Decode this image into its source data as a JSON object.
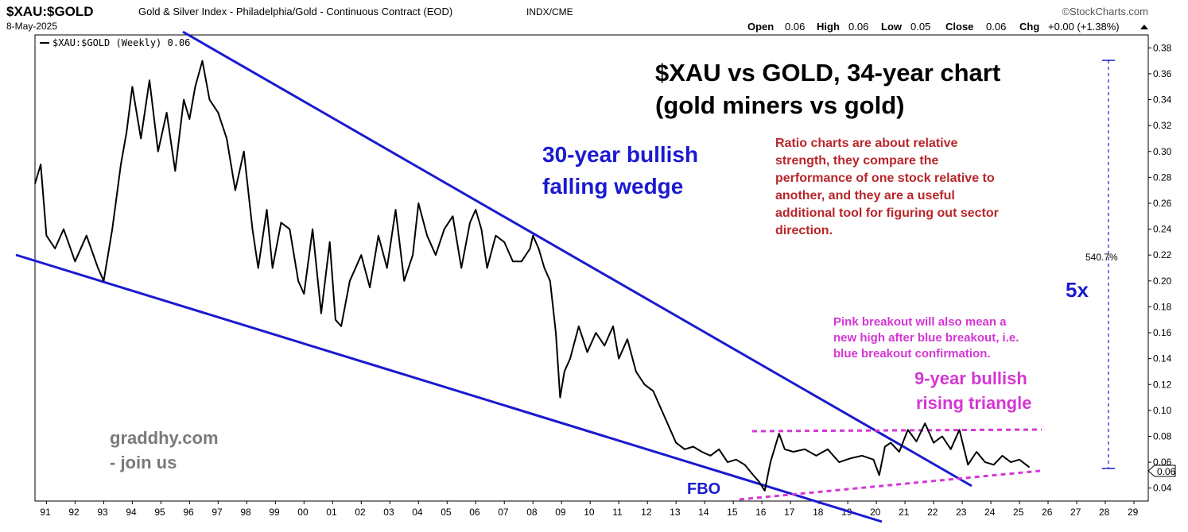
{
  "header": {
    "symbol": "$XAU:$GOLD",
    "description": "Gold & Silver Index - Philadelphia/Gold - Continuous Contract (EOD)",
    "exchange": "INDX/CME",
    "date": "8-May-2025",
    "logo": "©StockCharts.com",
    "ohlc": {
      "open_label": "Open",
      "open": "0.06",
      "high_label": "High",
      "high": "0.06",
      "low_label": "Low",
      "low": "0.05",
      "close_label": "Close",
      "close": "0.06",
      "chg_label": "Chg",
      "chg": "+0.00 (+1.38%)",
      "chg_icon": "up-triangle-icon"
    },
    "legend": "$XAU:$GOLD (Weekly) 0.06"
  },
  "annotations": {
    "title_line1": "$XAU vs GOLD, 34-year chart",
    "title_line2": "(gold miners vs gold)",
    "wedge_line1": "30-year bullish",
    "wedge_line2": "falling wedge",
    "ratio_note": [
      "Ratio charts are about relative",
      "strength, they compare the",
      "performance of one stock relative to",
      "another, and they are a useful",
      "additional tool for figuring out sector",
      "direction."
    ],
    "pink_note": [
      "Pink breakout will also mean a",
      "new high after blue breakout, i.e.",
      "blue breakout confirmation."
    ],
    "triangle_line1": "9-year bullish",
    "triangle_line2": "rising triangle",
    "site_line1": "graddhy.com",
    "site_line2": "- join us",
    "fbo": "FBO",
    "percent": "540.7%",
    "multiple": "5x",
    "last_value": "0.06"
  },
  "colors": {
    "price": "#000000",
    "wedge": "#1a1ad0",
    "triangle": "#d437d4",
    "note_red": "#b8262b",
    "note_grey": "#7a7a7a"
  },
  "chart_data": {
    "type": "line",
    "series_name": "$XAU:$GOLD (Weekly)",
    "x_ticks": [
      "91",
      "92",
      "93",
      "94",
      "95",
      "96",
      "97",
      "98",
      "99",
      "00",
      "01",
      "02",
      "03",
      "04",
      "05",
      "06",
      "07",
      "08",
      "09",
      "10",
      "11",
      "12",
      "13",
      "14",
      "15",
      "16",
      "17",
      "18",
      "19",
      "20",
      "21",
      "22",
      "23",
      "24",
      "25",
      "26",
      "27",
      "28",
      "29"
    ],
    "y_ticks": [
      "0.04",
      "0.06",
      "0.08",
      "0.10",
      "0.12",
      "0.14",
      "0.16",
      "0.18",
      "0.20",
      "0.22",
      "0.24",
      "0.26",
      "0.28",
      "0.30",
      "0.32",
      "0.34",
      "0.36",
      "0.38"
    ],
    "xlim": [
      1990.6,
      2029.5
    ],
    "ylim": [
      0.03,
      0.39
    ],
    "grid": false,
    "legend_position": "top-left",
    "series": [
      {
        "x": [
          1990.6,
          1990.8,
          1991.0,
          1991.3,
          1991.6,
          1992.0,
          1992.4,
          1992.8,
          1993.0,
          1993.3,
          1993.6,
          1993.8,
          1994.0,
          1994.3,
          1994.6,
          1994.9,
          1995.2,
          1995.5,
          1995.8,
          1996.0,
          1996.2,
          1996.45,
          1996.7,
          1997.0,
          1997.3,
          1997.6,
          1997.9,
          1998.2,
          1998.4,
          1998.7,
          1998.9,
          1999.2,
          1999.5,
          1999.8,
          2000.0,
          2000.3,
          2000.6,
          2000.9,
          2001.1,
          2001.3,
          2001.6,
          2002.0,
          2002.3,
          2002.6,
          2002.9,
          2003.2,
          2003.5,
          2003.8,
          2004.0,
          2004.3,
          2004.6,
          2004.9,
          2005.2,
          2005.5,
          2005.8,
          2006.0,
          2006.2,
          2006.4,
          2006.7,
          2007.0,
          2007.3,
          2007.6,
          2007.9,
          2008.0,
          2008.2,
          2008.4,
          2008.6,
          2008.8,
          2008.95,
          2009.1,
          2009.3,
          2009.6,
          2009.9,
          2010.2,
          2010.5,
          2010.8,
          2011.0,
          2011.3,
          2011.6,
          2011.9,
          2012.2,
          2012.5,
          2012.8,
          2013.0,
          2013.3,
          2013.6,
          2013.9,
          2014.2,
          2014.5,
          2014.8,
          2015.1,
          2015.4,
          2015.7,
          2015.9,
          2016.1,
          2016.3,
          2016.6,
          2016.8,
          2017.1,
          2017.5,
          2017.9,
          2018.3,
          2018.7,
          2019.1,
          2019.5,
          2019.9,
          2020.1,
          2020.3,
          2020.5,
          2020.8,
          2021.1,
          2021.4,
          2021.7,
          2022.0,
          2022.3,
          2022.6,
          2022.9,
          2023.2,
          2023.5,
          2023.8,
          2024.1,
          2024.4,
          2024.7,
          2025.0,
          2025.35
        ],
        "y": [
          0.275,
          0.29,
          0.235,
          0.225,
          0.24,
          0.215,
          0.235,
          0.21,
          0.2,
          0.24,
          0.29,
          0.315,
          0.35,
          0.31,
          0.355,
          0.3,
          0.33,
          0.285,
          0.34,
          0.325,
          0.35,
          0.37,
          0.34,
          0.33,
          0.31,
          0.27,
          0.3,
          0.24,
          0.21,
          0.255,
          0.21,
          0.245,
          0.24,
          0.2,
          0.19,
          0.24,
          0.175,
          0.23,
          0.17,
          0.165,
          0.2,
          0.22,
          0.195,
          0.235,
          0.21,
          0.255,
          0.2,
          0.22,
          0.26,
          0.235,
          0.22,
          0.24,
          0.25,
          0.21,
          0.245,
          0.255,
          0.24,
          0.21,
          0.235,
          0.23,
          0.215,
          0.215,
          0.225,
          0.235,
          0.225,
          0.21,
          0.2,
          0.16,
          0.11,
          0.13,
          0.14,
          0.165,
          0.145,
          0.16,
          0.15,
          0.165,
          0.14,
          0.155,
          0.13,
          0.12,
          0.115,
          0.1,
          0.085,
          0.075,
          0.07,
          0.072,
          0.068,
          0.065,
          0.07,
          0.06,
          0.062,
          0.058,
          0.05,
          0.045,
          0.038,
          0.06,
          0.082,
          0.07,
          0.068,
          0.07,
          0.065,
          0.07,
          0.06,
          0.063,
          0.065,
          0.062,
          0.05,
          0.072,
          0.075,
          0.068,
          0.085,
          0.076,
          0.09,
          0.075,
          0.08,
          0.07,
          0.085,
          0.058,
          0.068,
          0.06,
          0.058,
          0.065,
          0.06,
          0.062,
          0.056
        ]
      }
    ]
  }
}
